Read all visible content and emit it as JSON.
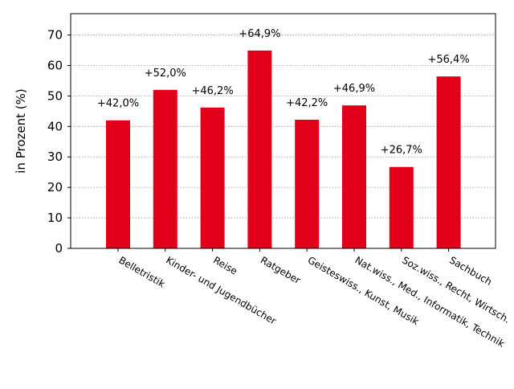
{
  "chart_data": {
    "type": "bar",
    "title": "",
    "xlabel": "",
    "ylabel": "in Prozent (%)",
    "ylim": [
      0,
      70
    ],
    "yticks": [
      0,
      10,
      20,
      30,
      40,
      50,
      60,
      70
    ],
    "grid": "horizontal dotted",
    "categories": [
      "Belletristik",
      "Kinder- und Jugendbücher",
      "Reise",
      "Ratgeber",
      "Geisteswiss., Kunst, Musik",
      "Nat.wiss., Med., Informatik, Technik",
      "Soz.wiss., Recht, Wirtsch.",
      "Sachbuch"
    ],
    "values": [
      42.0,
      52.0,
      46.2,
      64.9,
      42.2,
      46.9,
      26.7,
      56.4
    ],
    "data_labels": [
      "+42,0%",
      "+52,0%",
      "+46,2%",
      "+64,9%",
      "+42,2%",
      "+46,9%",
      "+26,7%",
      "+56,4%"
    ],
    "bar_color": "#e2001a"
  }
}
